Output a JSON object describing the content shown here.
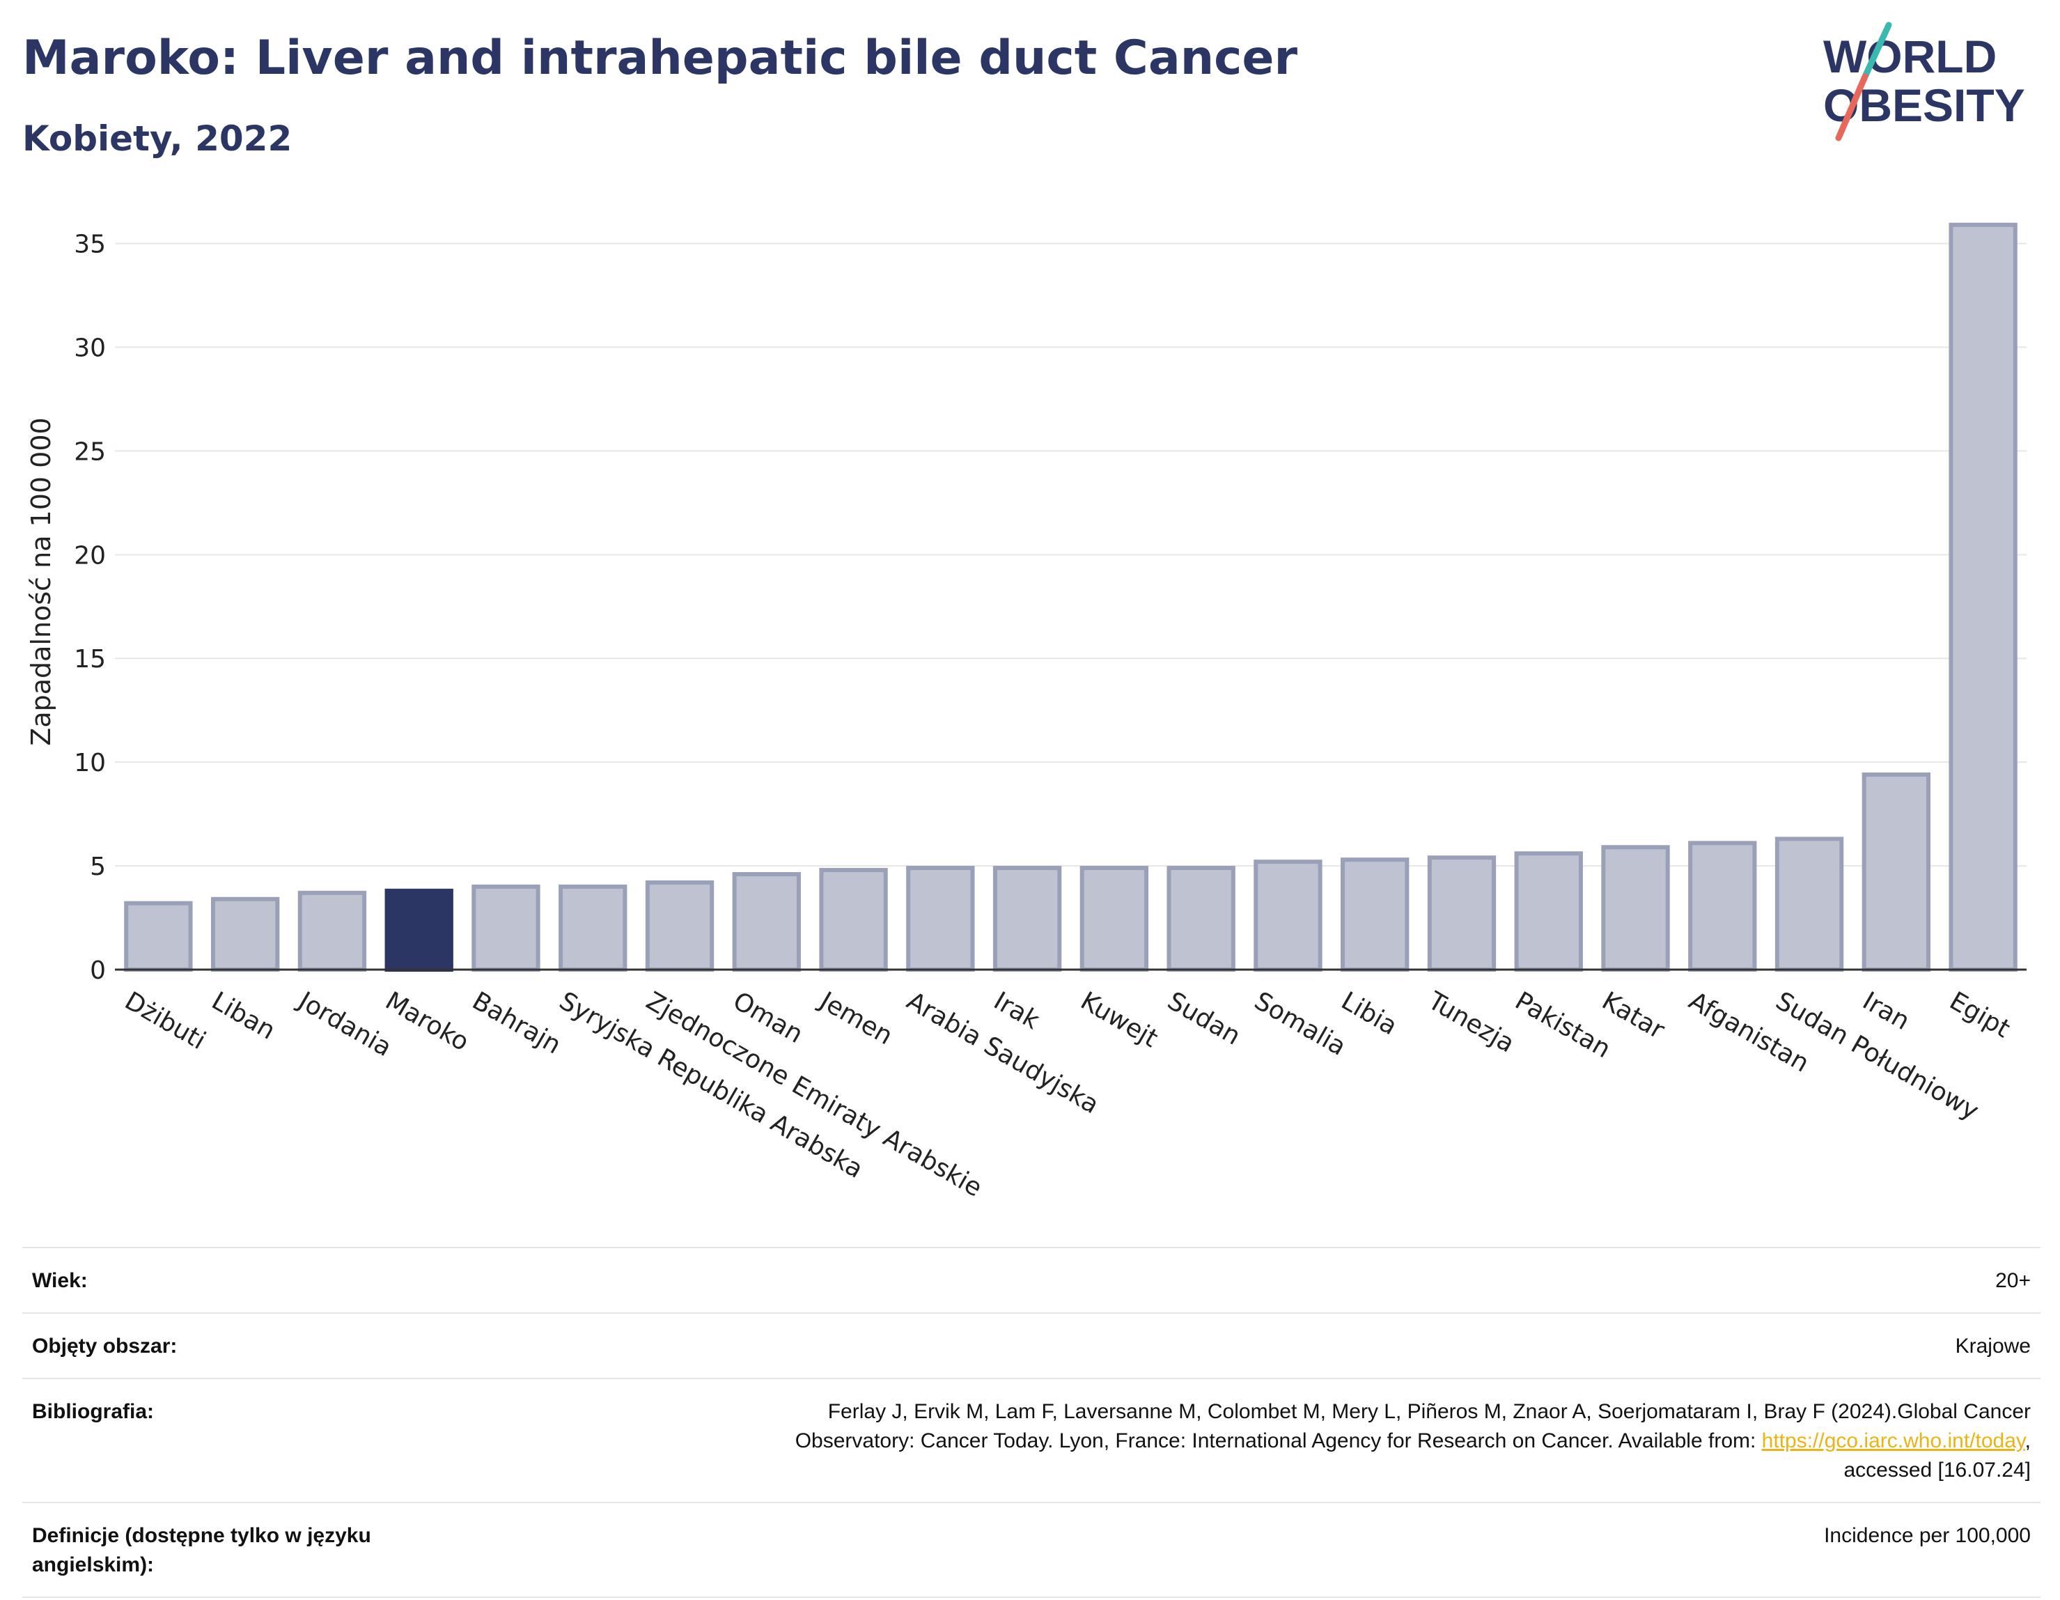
{
  "header": {
    "title": "Maroko: Liver and intrahepatic bile duct Cancer",
    "subtitle": "Kobiety, 2022",
    "logo_line1": "WORLD",
    "logo_line2": "OBESITY"
  },
  "colors": {
    "title": "#2b3664",
    "bar_default": "#bfc3d1",
    "bar_default_stroke": "#9aa0b8",
    "bar_highlight": "#2b3664",
    "link": "#e9b415",
    "logo_teal": "#3bb9b0",
    "logo_red": "#e8685b"
  },
  "chart_data": {
    "type": "bar",
    "ylabel": "Zapadalność na 100 000",
    "xlabel": "",
    "ylim": [
      0,
      37
    ],
    "yticks": [
      0,
      5,
      10,
      15,
      20,
      25,
      30,
      35
    ],
    "grid": true,
    "highlight": "Maroko",
    "categories": [
      "Dżibuti",
      "Liban",
      "Jordania",
      "Maroko",
      "Bahrajn",
      "Syryjska Republika Arabska",
      "Zjednoczone Emiraty Arabskie",
      "Oman",
      "Jemen",
      "Arabia Saudyjska",
      "Irak",
      "Kuwejt",
      "Sudan",
      "Somalia",
      "Libia",
      "Tunezja",
      "Pakistan",
      "Katar",
      "Afganistan",
      "Sudan Południowy",
      "Iran",
      "Egipt"
    ],
    "values": [
      3.2,
      3.4,
      3.7,
      3.8,
      4.0,
      4.0,
      4.2,
      4.6,
      4.8,
      4.9,
      4.9,
      4.9,
      4.9,
      5.2,
      5.3,
      5.4,
      5.6,
      5.9,
      6.1,
      6.3,
      9.4,
      35.9
    ]
  },
  "info": {
    "rows": [
      {
        "label": "Wiek:",
        "value": "20+"
      },
      {
        "label": "Objęty obszar:",
        "value": "Krajowe"
      },
      {
        "label": "Bibliografia:",
        "value_line1": "Ferlay J, Ervik M, Lam F, Laversanne M, Colombet M, Mery L, Piñeros M, Znaor A, Soerjomataram I, Bray F (2024).Global Cancer",
        "value_line2_pre": "Observatory: Cancer Today. Lyon, France: International Agency for Research on Cancer. Available from: ",
        "link_text": "https://gco.iarc.who.int/today",
        "value_line2_post": ",",
        "value_line3": "accessed [16.07.24]"
      },
      {
        "label": "Definicje (dostępne tylko w języku angielskim):",
        "value": "Incidence per 100,000"
      }
    ]
  }
}
